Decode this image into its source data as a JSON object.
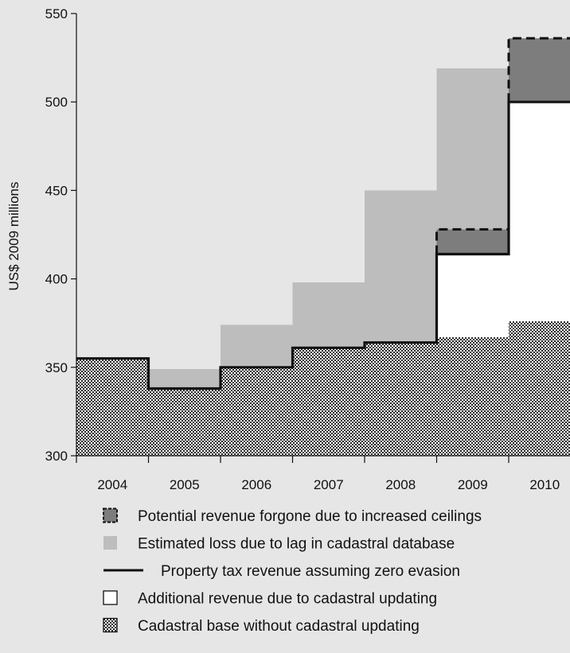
{
  "chart_data": {
    "type": "area",
    "ylabel": "US$ 2009 millions",
    "xlabel": "",
    "ylim": [
      300,
      550
    ],
    "yticks": [
      300,
      350,
      400,
      450,
      500,
      550
    ],
    "categories": [
      "2004",
      "2005",
      "2006",
      "2007",
      "2008",
      "2009",
      "2010"
    ],
    "series": [
      {
        "key": "base",
        "name": "Cadastral base without cadastral updating",
        "values": [
          355,
          338,
          350,
          361,
          364,
          367,
          376
        ]
      },
      {
        "key": "additional",
        "name": "Additional revenue due to cadastral updating",
        "values": [
          0,
          0,
          0,
          0,
          0,
          47,
          124
        ]
      },
      {
        "key": "property_tax",
        "name": "Property tax revenue assuming zero evasion",
        "values": [
          355,
          338,
          350,
          361,
          364,
          414,
          500
        ]
      },
      {
        "key": "lag_loss",
        "name": "Estimated loss due to lag in cadastral database",
        "values": [
          0,
          11,
          24,
          37,
          86,
          91,
          0
        ]
      },
      {
        "key": "forgone",
        "name": "Potential revenue forgone due to increased ceilings",
        "values": [
          0,
          0,
          0,
          0,
          0,
          14,
          36
        ]
      }
    ],
    "legend_order": [
      "forgone",
      "lag_loss",
      "property_tax",
      "additional",
      "base"
    ],
    "colors": {
      "background": "#e6e6e6",
      "lag_loss": "#bdbdbd",
      "forgone": "#7d7d7d",
      "additional": "#ffffff",
      "line": "#111111"
    }
  }
}
